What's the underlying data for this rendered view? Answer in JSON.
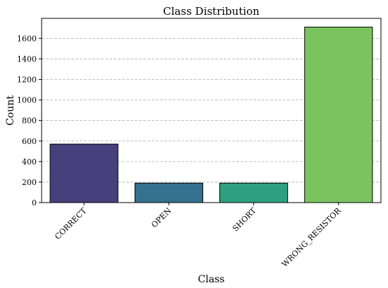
{
  "chart_data": {
    "type": "bar",
    "title": "Class Distribution",
    "xlabel": "Class",
    "ylabel": "Count",
    "categories": [
      "CORRECT",
      "OPEN",
      "SHORT",
      "WRONG_RESISTOR"
    ],
    "values": [
      570,
      190,
      190,
      1710
    ],
    "ylim": [
      0,
      1795
    ],
    "yticks": [
      0,
      200,
      400,
      600,
      800,
      1000,
      1200,
      1400,
      1600
    ],
    "grid": "y-dashed",
    "bar_colors": [
      "#46407c",
      "#33718e",
      "#2ea07f",
      "#7ac35f"
    ]
  }
}
